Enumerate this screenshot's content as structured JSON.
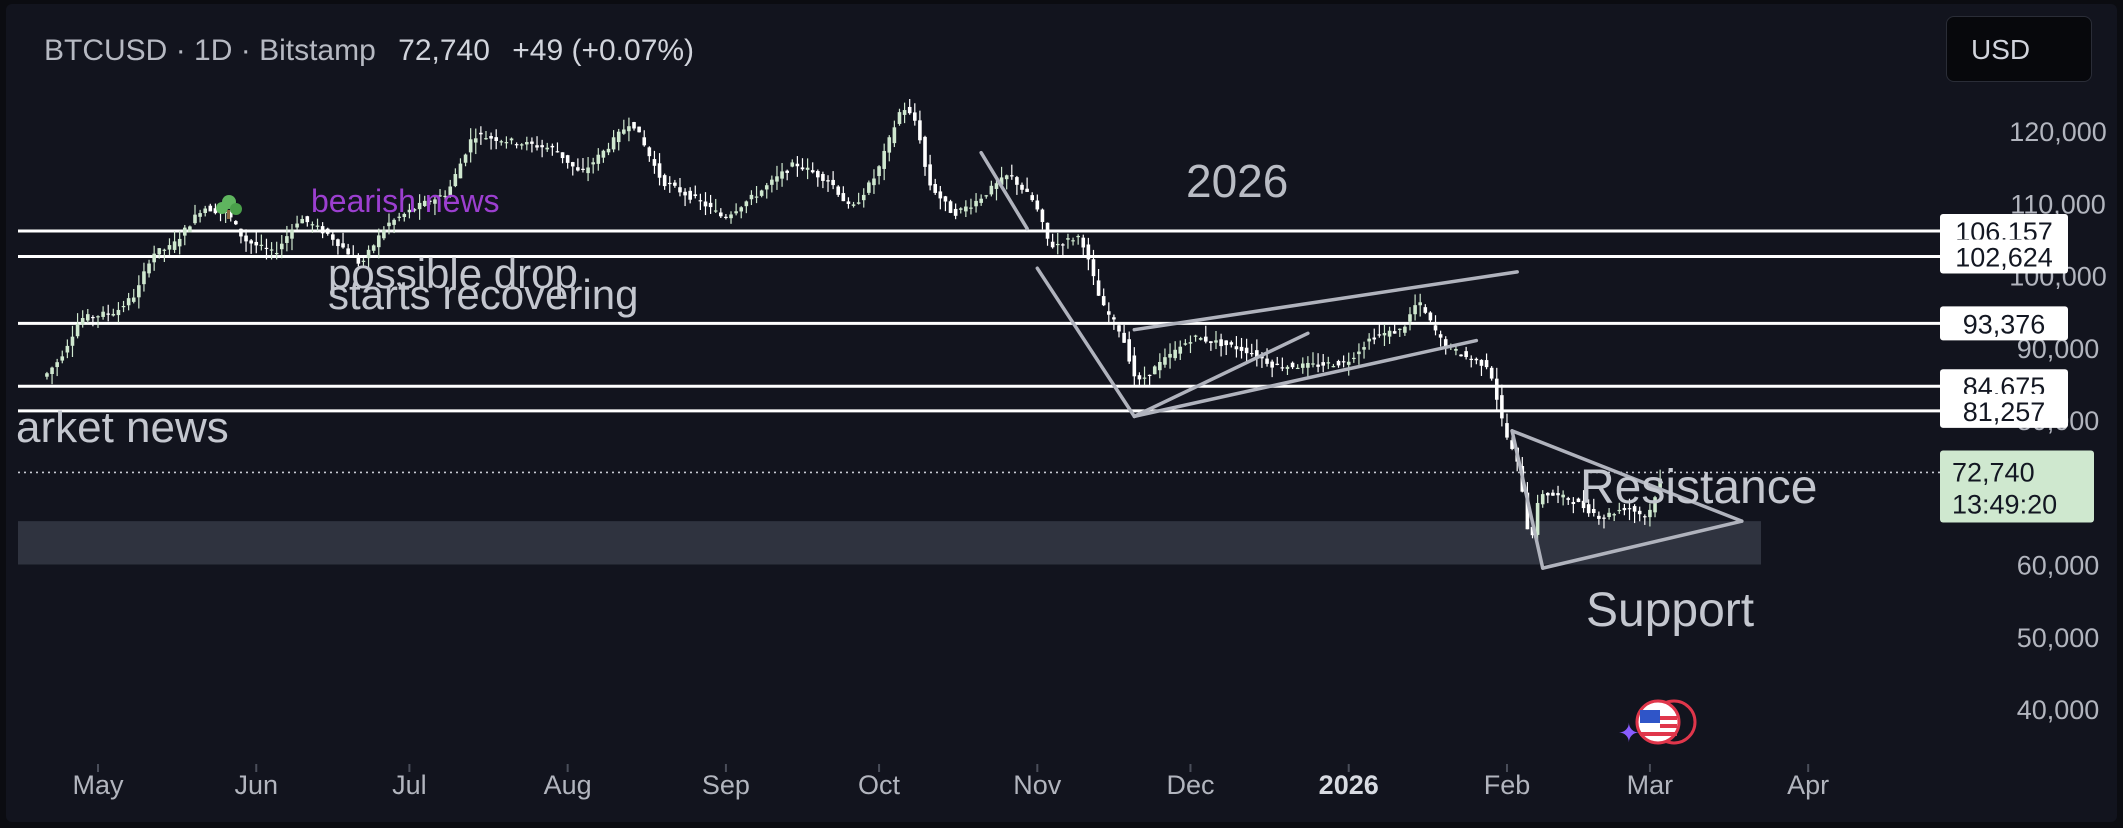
{
  "header": {
    "symbol": "BTCUSD",
    "sep1": "·",
    "interval": "1D",
    "sep2": "·",
    "exchange": "Bitstamp",
    "price": "72,740",
    "change": "+49 (+0.07%)"
  },
  "currency_button": "USD",
  "colors": {
    "background": "#12141e",
    "candle_up": "#cfe8cf",
    "candle_down": "#ffffff",
    "line": "#ffffff",
    "drawing": "#b0b3bd",
    "accent_text": "#9c3fd0",
    "last_price_bg": "#cfe8cf"
  },
  "chart_data": {
    "type": "candlestick",
    "symbol": "BTCUSD",
    "timeframe": "1D",
    "exchange": "Bitstamp",
    "ylim": [
      35000,
      128000
    ],
    "y_ticks": [
      {
        "value": 120000,
        "label": "120,000"
      },
      {
        "value": 110000,
        "label": "110,000"
      },
      {
        "value": 100000,
        "label": "100,000"
      },
      {
        "value": 90000,
        "label": "90,000"
      },
      {
        "value": 80000,
        "label": "80,000"
      },
      {
        "value": 60000,
        "label": "60,000"
      },
      {
        "value": 50000,
        "label": "50,000"
      },
      {
        "value": 40000,
        "label": "40,000"
      }
    ],
    "x_ticks": [
      {
        "label": "May",
        "bold": false
      },
      {
        "label": "Jun",
        "bold": false
      },
      {
        "label": "Jul",
        "bold": false
      },
      {
        "label": "Aug",
        "bold": false
      },
      {
        "label": "Sep",
        "bold": false
      },
      {
        "label": "Oct",
        "bold": false
      },
      {
        "label": "Nov",
        "bold": false
      },
      {
        "label": "Dec",
        "bold": false
      },
      {
        "label": "2026",
        "bold": true
      },
      {
        "label": "Feb",
        "bold": false
      },
      {
        "label": "Mar",
        "bold": false
      },
      {
        "label": "Apr",
        "bold": false
      }
    ],
    "horizontal_levels": [
      {
        "value": 106157,
        "label": "106,157"
      },
      {
        "value": 102624,
        "label": "102,624"
      },
      {
        "value": 93376,
        "label": "93,376"
      },
      {
        "value": 84675,
        "label": "84,675"
      },
      {
        "value": 81257,
        "label": "81,257"
      }
    ],
    "last_price": {
      "value": 72740,
      "label": "72,740",
      "countdown": "13:49:20"
    },
    "support_zone": {
      "low": 60000,
      "high": 66000
    },
    "price_path": [
      [
        "2025-04-21",
        86000
      ],
      [
        "2025-04-24",
        88500
      ],
      [
        "2025-04-28",
        94000
      ],
      [
        "2025-05-05",
        95000
      ],
      [
        "2025-05-09",
        97500
      ],
      [
        "2025-05-12",
        103000
      ],
      [
        "2025-05-16",
        104000
      ],
      [
        "2025-05-22",
        109500
      ],
      [
        "2025-05-27",
        108500
      ],
      [
        "2025-05-30",
        105000
      ],
      [
        "2025-06-05",
        103000
      ],
      [
        "2025-06-10",
        108000
      ],
      [
        "2025-06-16",
        105500
      ],
      [
        "2025-06-22",
        101500
      ],
      [
        "2025-06-27",
        107000
      ],
      [
        "2025-07-03",
        109500
      ],
      [
        "2025-07-09",
        111500
      ],
      [
        "2025-07-14",
        119500
      ],
      [
        "2025-07-22",
        118500
      ],
      [
        "2025-07-30",
        117500
      ],
      [
        "2025-08-04",
        114000
      ],
      [
        "2025-08-09",
        117500
      ],
      [
        "2025-08-14",
        121500
      ],
      [
        "2025-08-20",
        113000
      ],
      [
        "2025-08-28",
        110000
      ],
      [
        "2025-09-01",
        108000
      ],
      [
        "2025-09-08",
        111500
      ],
      [
        "2025-09-15",
        115500
      ],
      [
        "2025-09-22",
        113000
      ],
      [
        "2025-09-26",
        109000
      ],
      [
        "2025-10-01",
        114000
      ],
      [
        "2025-10-06",
        123500
      ],
      [
        "2025-10-09",
        121000
      ],
      [
        "2025-10-11",
        113000
      ],
      [
        "2025-10-16",
        108500
      ],
      [
        "2025-10-20",
        110000
      ],
      [
        "2025-10-27",
        114000
      ],
      [
        "2025-11-01",
        110000
      ],
      [
        "2025-11-04",
        104000
      ],
      [
        "2025-11-10",
        105500
      ],
      [
        "2025-11-14",
        96000
      ],
      [
        "2025-11-18",
        92000
      ],
      [
        "2025-11-21",
        85000
      ],
      [
        "2025-11-25",
        87500
      ],
      [
        "2025-12-02",
        91500
      ],
      [
        "2025-12-08",
        90500
      ],
      [
        "2025-12-13",
        89500
      ],
      [
        "2025-12-18",
        87500
      ],
      [
        "2025-12-25",
        87500
      ],
      [
        "2026-01-01",
        88000
      ],
      [
        "2026-01-06",
        91500
      ],
      [
        "2026-01-12",
        92500
      ],
      [
        "2026-01-15",
        96500
      ],
      [
        "2026-01-20",
        90500
      ],
      [
        "2026-01-25",
        88500
      ],
      [
        "2026-01-29",
        87500
      ],
      [
        "2026-02-01",
        78500
      ],
      [
        "2026-02-04",
        73000
      ],
      [
        "2026-02-06",
        62500
      ],
      [
        "2026-02-08",
        70000
      ],
      [
        "2026-02-14",
        69000
      ],
      [
        "2026-02-20",
        66500
      ],
      [
        "2026-02-25",
        68000
      ],
      [
        "2026-03-01",
        66500
      ],
      [
        "2026-03-04",
        72740
      ]
    ],
    "drawings": [
      {
        "type": "line",
        "points": [
          [
            "2025-10-21",
            117000
          ],
          [
            "2025-10-30",
            106500
          ]
        ]
      },
      {
        "type": "line",
        "points": [
          [
            "2025-11-01",
            101000
          ],
          [
            "2025-11-20",
            80500
          ]
        ]
      },
      {
        "type": "line",
        "points": [
          [
            "2025-11-20",
            80500
          ],
          [
            "2025-12-24",
            92000
          ]
        ]
      },
      {
        "type": "line",
        "points": [
          [
            "2025-11-20",
            80500
          ],
          [
            "2026-01-26",
            91000
          ]
        ]
      },
      {
        "type": "line",
        "points": [
          [
            "2025-11-20",
            92500
          ],
          [
            "2026-02-03",
            100500
          ]
        ]
      },
      {
        "type": "line",
        "points": [
          [
            "2026-02-08",
            59500
          ],
          [
            "2026-03-19",
            66000
          ]
        ]
      },
      {
        "type": "line",
        "points": [
          [
            "2026-02-08",
            59500
          ],
          [
            "2026-02-02",
            78500
          ]
        ]
      },
      {
        "type": "line",
        "points": [
          [
            "2026-02-02",
            78500
          ],
          [
            "2026-03-19",
            66000
          ]
        ]
      }
    ],
    "annotations": [
      {
        "text": "bearish news",
        "style": "purple"
      },
      {
        "text": "possible drop",
        "style": "grey"
      },
      {
        "text": "starts recovering",
        "style": "grey"
      },
      {
        "text": "arket news",
        "style": "grey"
      },
      {
        "text": "2026",
        "style": "grey"
      },
      {
        "text": "Resistance",
        "style": "grey"
      },
      {
        "text": "Support",
        "style": "grey"
      }
    ]
  }
}
